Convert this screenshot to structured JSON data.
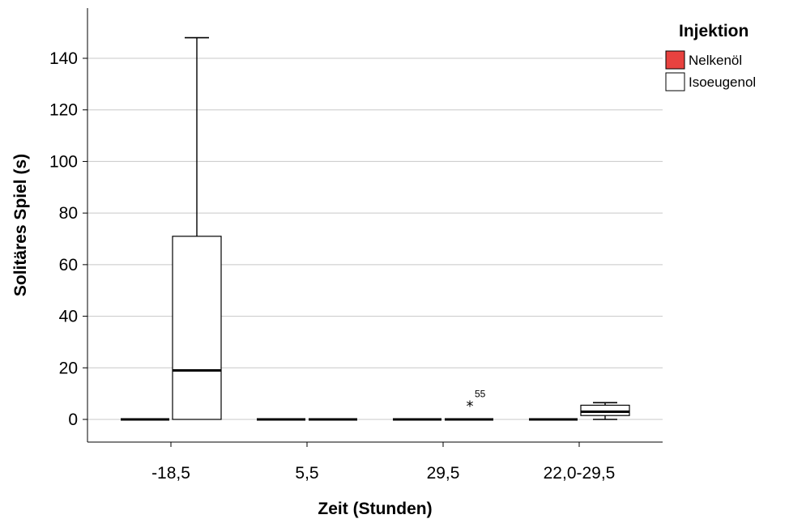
{
  "chart_data": {
    "type": "boxplot",
    "xlabel": "Zeit (Stunden)",
    "ylabel": "Solitäres Spiel (s)",
    "categories": [
      "-18,5",
      "5,5",
      "29,5",
      "22,0-29,5"
    ],
    "ylim": [
      -9,
      155
    ],
    "yticks": [
      0,
      20,
      40,
      60,
      80,
      100,
      120,
      140
    ],
    "grid": "horizontal",
    "legend": {
      "title": "Injektion",
      "placement": "top-right",
      "entries": [
        {
          "label": "Nelkenöl",
          "color": "#e8423f"
        },
        {
          "label": "Isoeugenol",
          "color": "#ffffff"
        }
      ]
    },
    "series": [
      {
        "name": "Nelkenöl",
        "color": "#e8423f",
        "boxes": [
          {
            "min": 0,
            "q1": 0,
            "median": 0,
            "q3": 0,
            "max": 0
          },
          {
            "min": 0,
            "q1": 0,
            "median": 0,
            "q3": 0,
            "max": 0
          },
          {
            "min": 0,
            "q1": 0,
            "median": 0,
            "q3": 0,
            "max": 0
          },
          {
            "min": 0,
            "q1": 0,
            "median": 0,
            "q3": 0,
            "max": 0
          }
        ]
      },
      {
        "name": "Isoeugenol",
        "color": "#ffffff",
        "boxes": [
          {
            "min": 0,
            "q1": 0,
            "median": 19,
            "q3": 71,
            "max": 148
          },
          {
            "min": 0,
            "q1": 0,
            "median": 0,
            "q3": 0,
            "max": 0
          },
          {
            "min": 0,
            "q1": 0,
            "median": 0,
            "q3": 0,
            "max": 0,
            "outliers": [
              {
                "value": 6.5,
                "label": "55",
                "marker": "*"
              }
            ]
          },
          {
            "min": 0,
            "q1": 1.5,
            "median": 3,
            "q3": 5.5,
            "max": 6.5
          }
        ]
      }
    ]
  }
}
